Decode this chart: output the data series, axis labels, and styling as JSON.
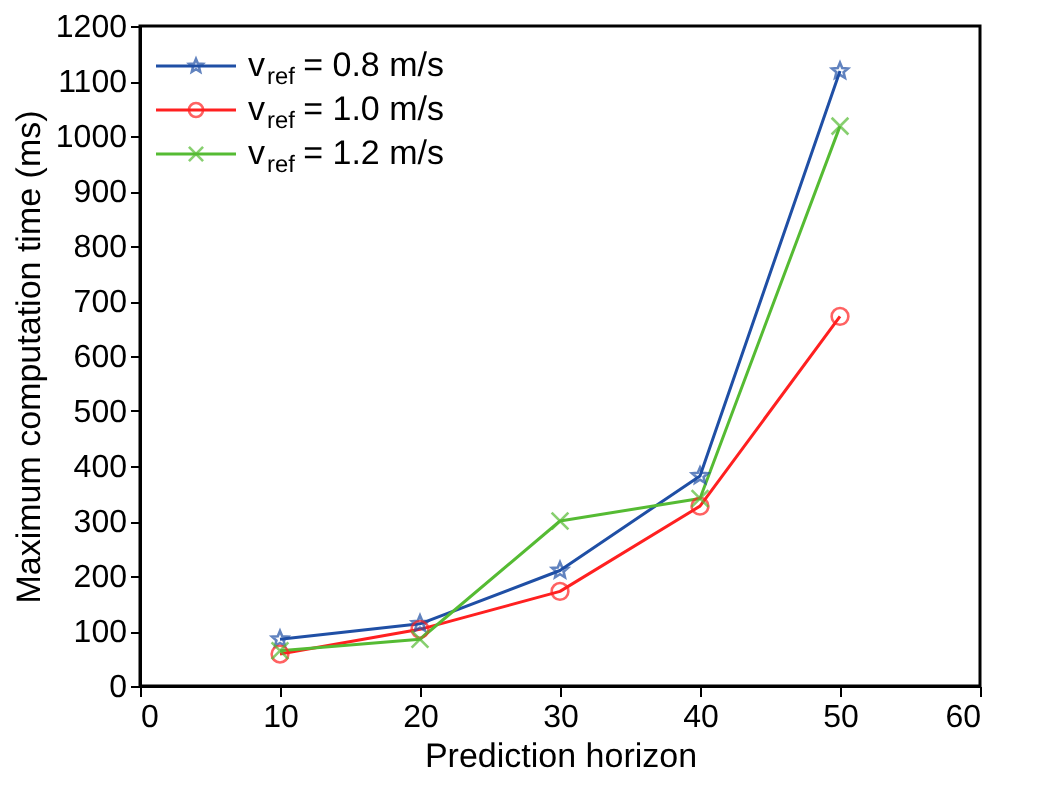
{
  "chart_data": {
    "type": "line",
    "xlabel": "Prediction horizon",
    "ylabel": "Maximum computation time (ms)",
    "x": [
      10,
      20,
      30,
      40,
      50
    ],
    "series": [
      {
        "name": "v$_{ref}$ = 0.8 m/s",
        "color": "#1f4fa5",
        "marker": "star",
        "values": [
          85,
          113,
          210,
          382,
          1118
        ]
      },
      {
        "name": "v$_{ref}$ = 1.0 m/s",
        "color": "#ff2020",
        "marker": "circle",
        "values": [
          58,
          103,
          172,
          327,
          672
        ]
      },
      {
        "name": "v$_{ref}$ = 1.2 m/s",
        "color": "#55bb33",
        "marker": "cross",
        "values": [
          64,
          85,
          300,
          341,
          1018
        ]
      }
    ],
    "xlim": [
      0,
      60
    ],
    "xticks": [
      0,
      10,
      20,
      30,
      40,
      50,
      60
    ],
    "ylim": [
      0,
      1200
    ],
    "yticks": [
      0,
      100,
      200,
      300,
      400,
      500,
      600,
      700,
      800,
      900,
      1000,
      1100,
      1200
    ],
    "grid": false,
    "legend": "top left",
    "line_style": "solid"
  }
}
